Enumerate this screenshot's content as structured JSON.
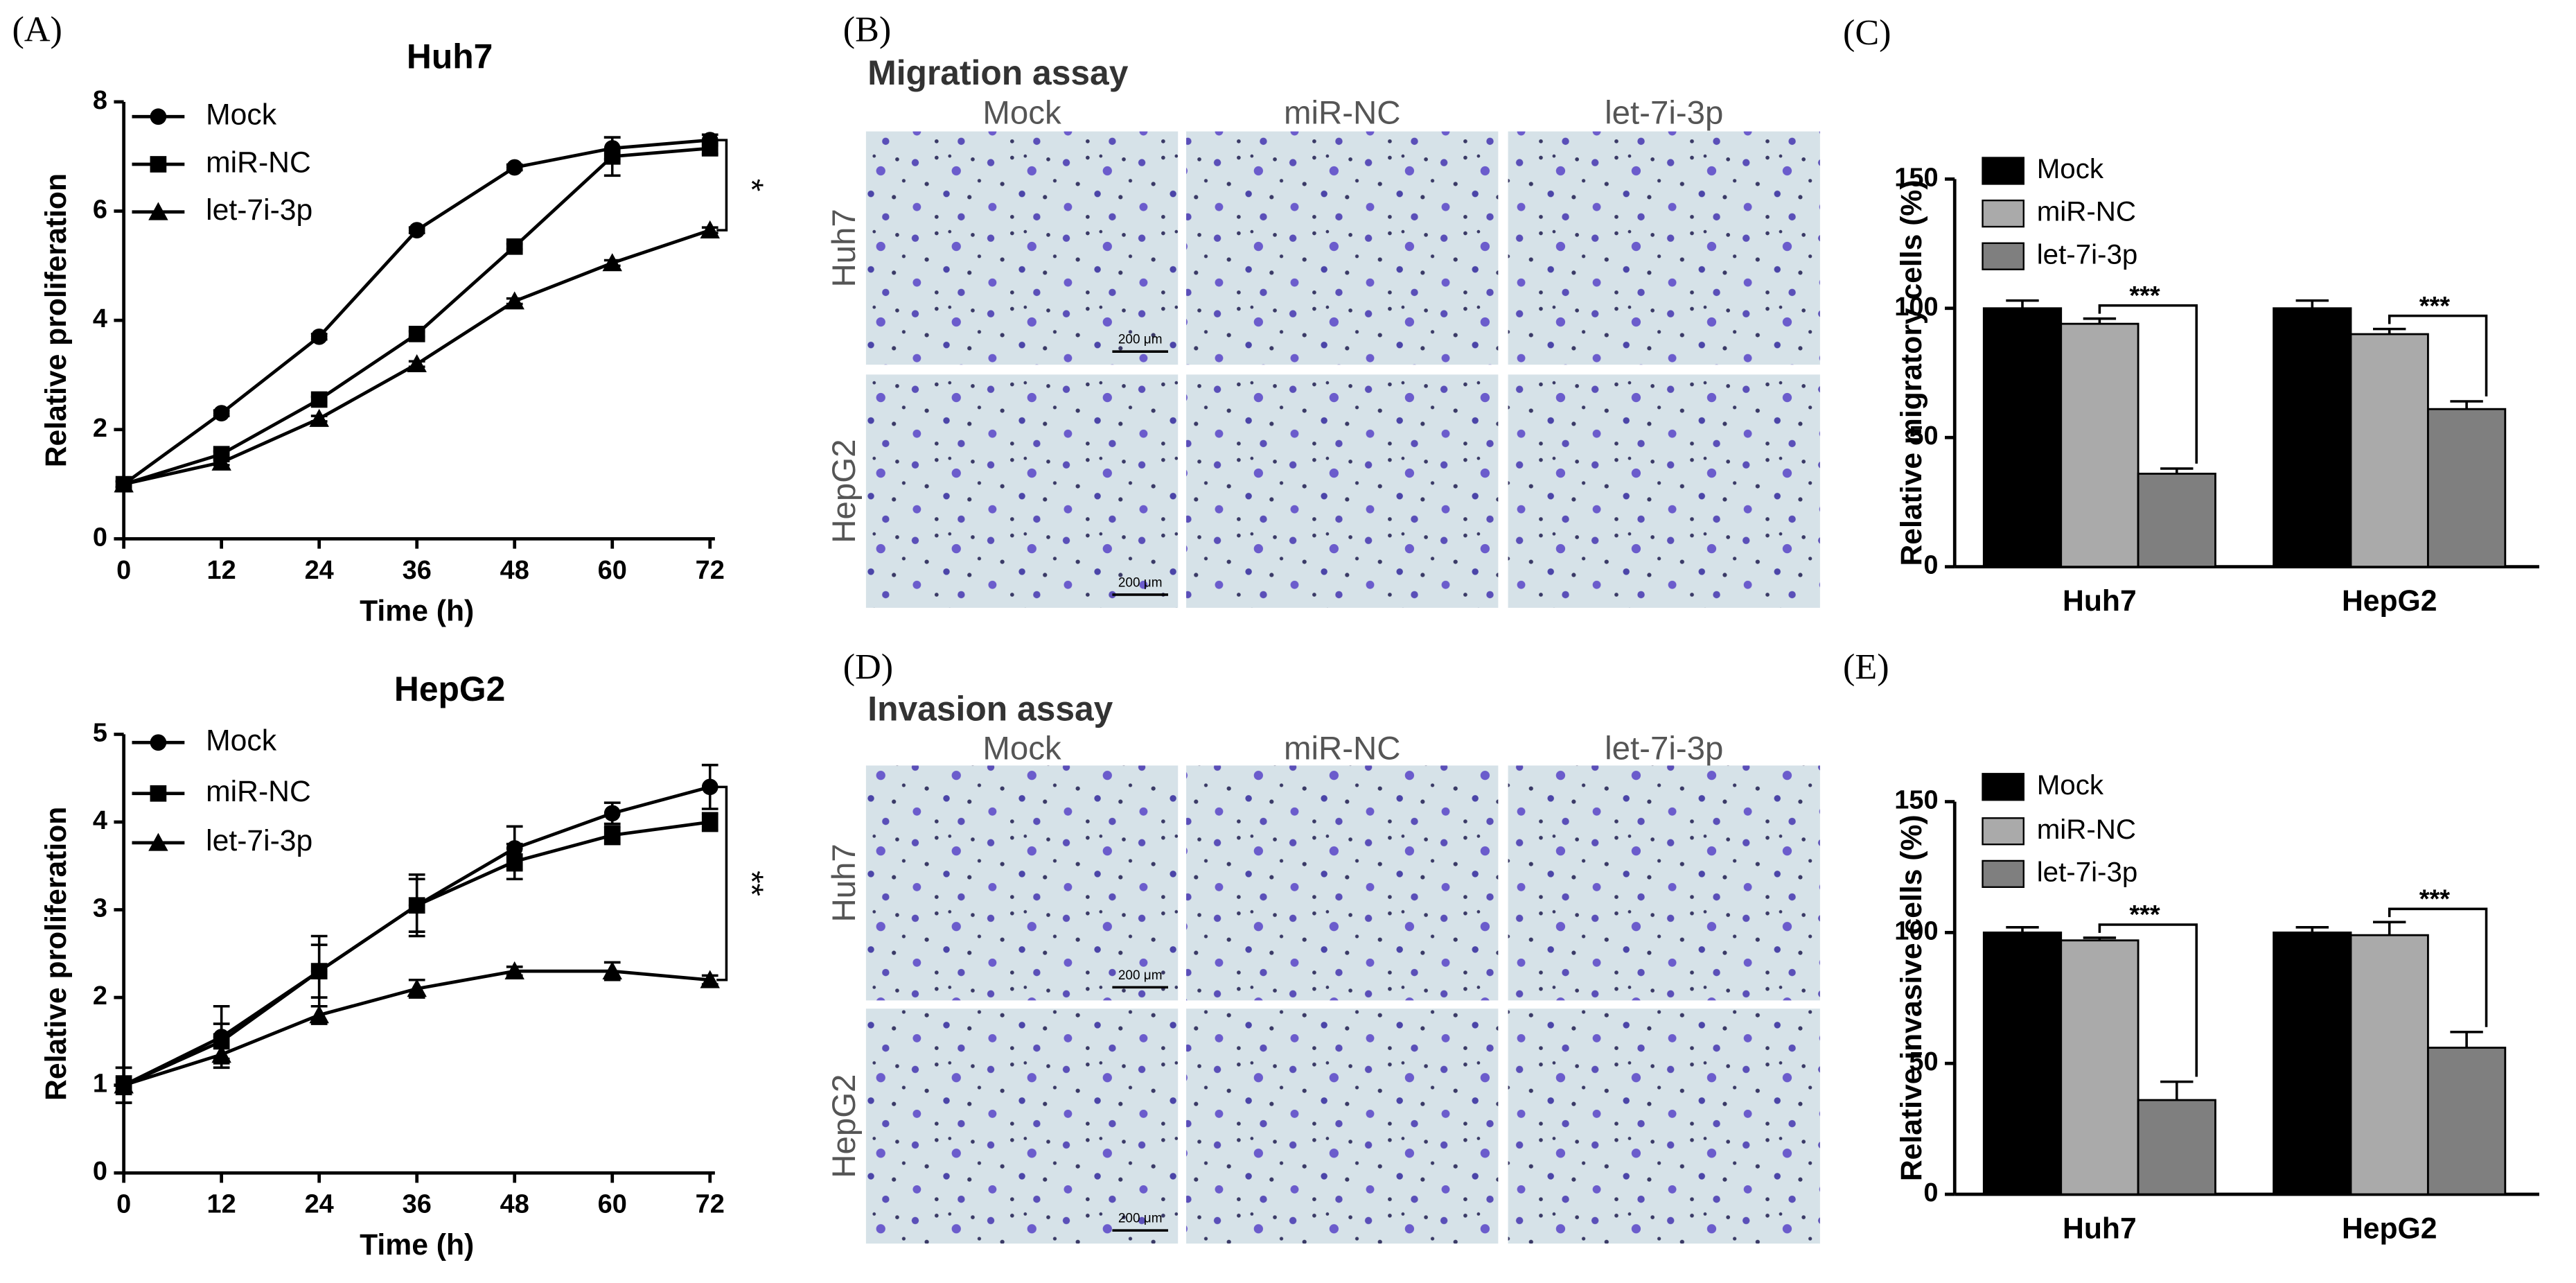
{
  "panel_labels": [
    "(A)",
    "(B)",
    "(C)",
    "(D)",
    "(E)"
  ],
  "chart_data": [
    {
      "type": "line",
      "title": "Huh7",
      "xlabel": "Time (h)",
      "ylabel": "Relative  proliferation",
      "x": [
        0,
        12,
        24,
        36,
        48,
        60,
        72
      ],
      "xlim": [
        0,
        72
      ],
      "xticks": [
        0,
        12,
        24,
        36,
        48,
        60,
        72
      ],
      "ylim": [
        0,
        8
      ],
      "yticks": [
        0,
        2,
        4,
        6,
        8
      ],
      "annotation": "*",
      "series": [
        {
          "name": "Mock",
          "color": "#000000",
          "marker": "circle",
          "values": [
            1,
            2.3,
            3.7,
            5.65,
            6.8,
            7.15,
            7.3
          ],
          "errors": [
            0.05,
            0.05,
            0.05,
            0.05,
            0.05,
            0.2,
            0.1
          ]
        },
        {
          "name": "miR-NC",
          "color": "#000000",
          "marker": "square",
          "values": [
            1,
            1.55,
            2.55,
            3.75,
            5.35,
            7.0,
            7.15
          ],
          "errors": [
            0.05,
            0.05,
            0.05,
            0.05,
            0.05,
            0.35,
            0.1
          ]
        },
        {
          "name": "let-7i-3p",
          "color": "#000000",
          "marker": "triangle",
          "values": [
            1,
            1.4,
            2.2,
            3.2,
            4.35,
            5.05,
            5.65
          ],
          "errors": [
            0.05,
            0.05,
            0.05,
            0.05,
            0.05,
            0.05,
            0.05
          ]
        }
      ]
    },
    {
      "type": "line",
      "title": "HepG2",
      "xlabel": "Time (h)",
      "ylabel": "Relative  proliferation",
      "x": [
        0,
        12,
        24,
        36,
        48,
        60,
        72
      ],
      "xlim": [
        0,
        72
      ],
      "xticks": [
        0,
        12,
        24,
        36,
        48,
        60,
        72
      ],
      "ylim": [
        0,
        5
      ],
      "yticks": [
        0,
        1,
        2,
        3,
        4,
        5
      ],
      "annotation": "**",
      "series": [
        {
          "name": "Mock",
          "color": "#000000",
          "marker": "circle",
          "values": [
            1,
            1.55,
            2.3,
            3.05,
            3.7,
            4.1,
            4.4
          ],
          "errors": [
            0.2,
            0.35,
            0.4,
            0.35,
            0.25,
            0.12,
            0.25
          ]
        },
        {
          "name": "miR-NC",
          "color": "#000000",
          "marker": "square",
          "values": [
            1,
            1.5,
            2.3,
            3.05,
            3.55,
            3.85,
            4.0
          ],
          "errors": [
            0.2,
            0.2,
            0.3,
            0.3,
            0.2,
            0.1,
            0.1
          ]
        },
        {
          "name": "let-7i-3p",
          "color": "#000000",
          "marker": "triangle",
          "values": [
            1,
            1.35,
            1.8,
            2.1,
            2.3,
            2.3,
            2.2
          ],
          "errors": [
            0.1,
            0.1,
            0.1,
            0.1,
            0.05,
            0.1,
            0.05
          ]
        }
      ]
    },
    {
      "type": "bar",
      "ylabel": "Relative  migratory cells (%)",
      "categories": [
        "Huh7",
        "HepG2"
      ],
      "ylim": [
        0,
        150
      ],
      "yticks": [
        0,
        50,
        100,
        150
      ],
      "annotations": [
        "***",
        "***"
      ],
      "series": [
        {
          "name": "Mock",
          "color": "#000000",
          "values": [
            100,
            100
          ],
          "errors": [
            3,
            3
          ]
        },
        {
          "name": "miR-NC",
          "color": "#aaaaaa",
          "values": [
            94,
            90
          ],
          "errors": [
            2,
            2
          ]
        },
        {
          "name": "let-7i-3p",
          "color": "#7f7f7f",
          "values": [
            36,
            61
          ],
          "errors": [
            2,
            3
          ]
        }
      ]
    },
    {
      "type": "bar",
      "ylabel": "Relative  invasive cells (%)",
      "categories": [
        "Huh7",
        "HepG2"
      ],
      "ylim": [
        0,
        150
      ],
      "yticks": [
        0,
        50,
        100,
        150
      ],
      "annotations": [
        "***",
        "***"
      ],
      "series": [
        {
          "name": "Mock",
          "color": "#000000",
          "values": [
            100,
            100
          ],
          "errors": [
            2,
            2
          ]
        },
        {
          "name": "miR-NC",
          "color": "#aaaaaa",
          "values": [
            97,
            99
          ],
          "errors": [
            1,
            5
          ]
        },
        {
          "name": "let-7i-3p",
          "color": "#7f7f7f",
          "values": [
            36,
            56
          ],
          "errors": [
            7,
            6
          ]
        }
      ]
    }
  ],
  "micrographs": [
    {
      "title": "Migration assay",
      "columns": [
        "Mock",
        "miR-NC",
        "let-7i-3p"
      ],
      "rows": [
        "Huh7",
        "HepG2"
      ],
      "scale_bar": "200 μm"
    },
    {
      "title": "Invasion assay",
      "columns": [
        "Mock",
        "miR-NC",
        "let-7i-3p"
      ],
      "rows": [
        "Huh7",
        "HepG2"
      ],
      "scale_bar": "200 μm"
    }
  ]
}
